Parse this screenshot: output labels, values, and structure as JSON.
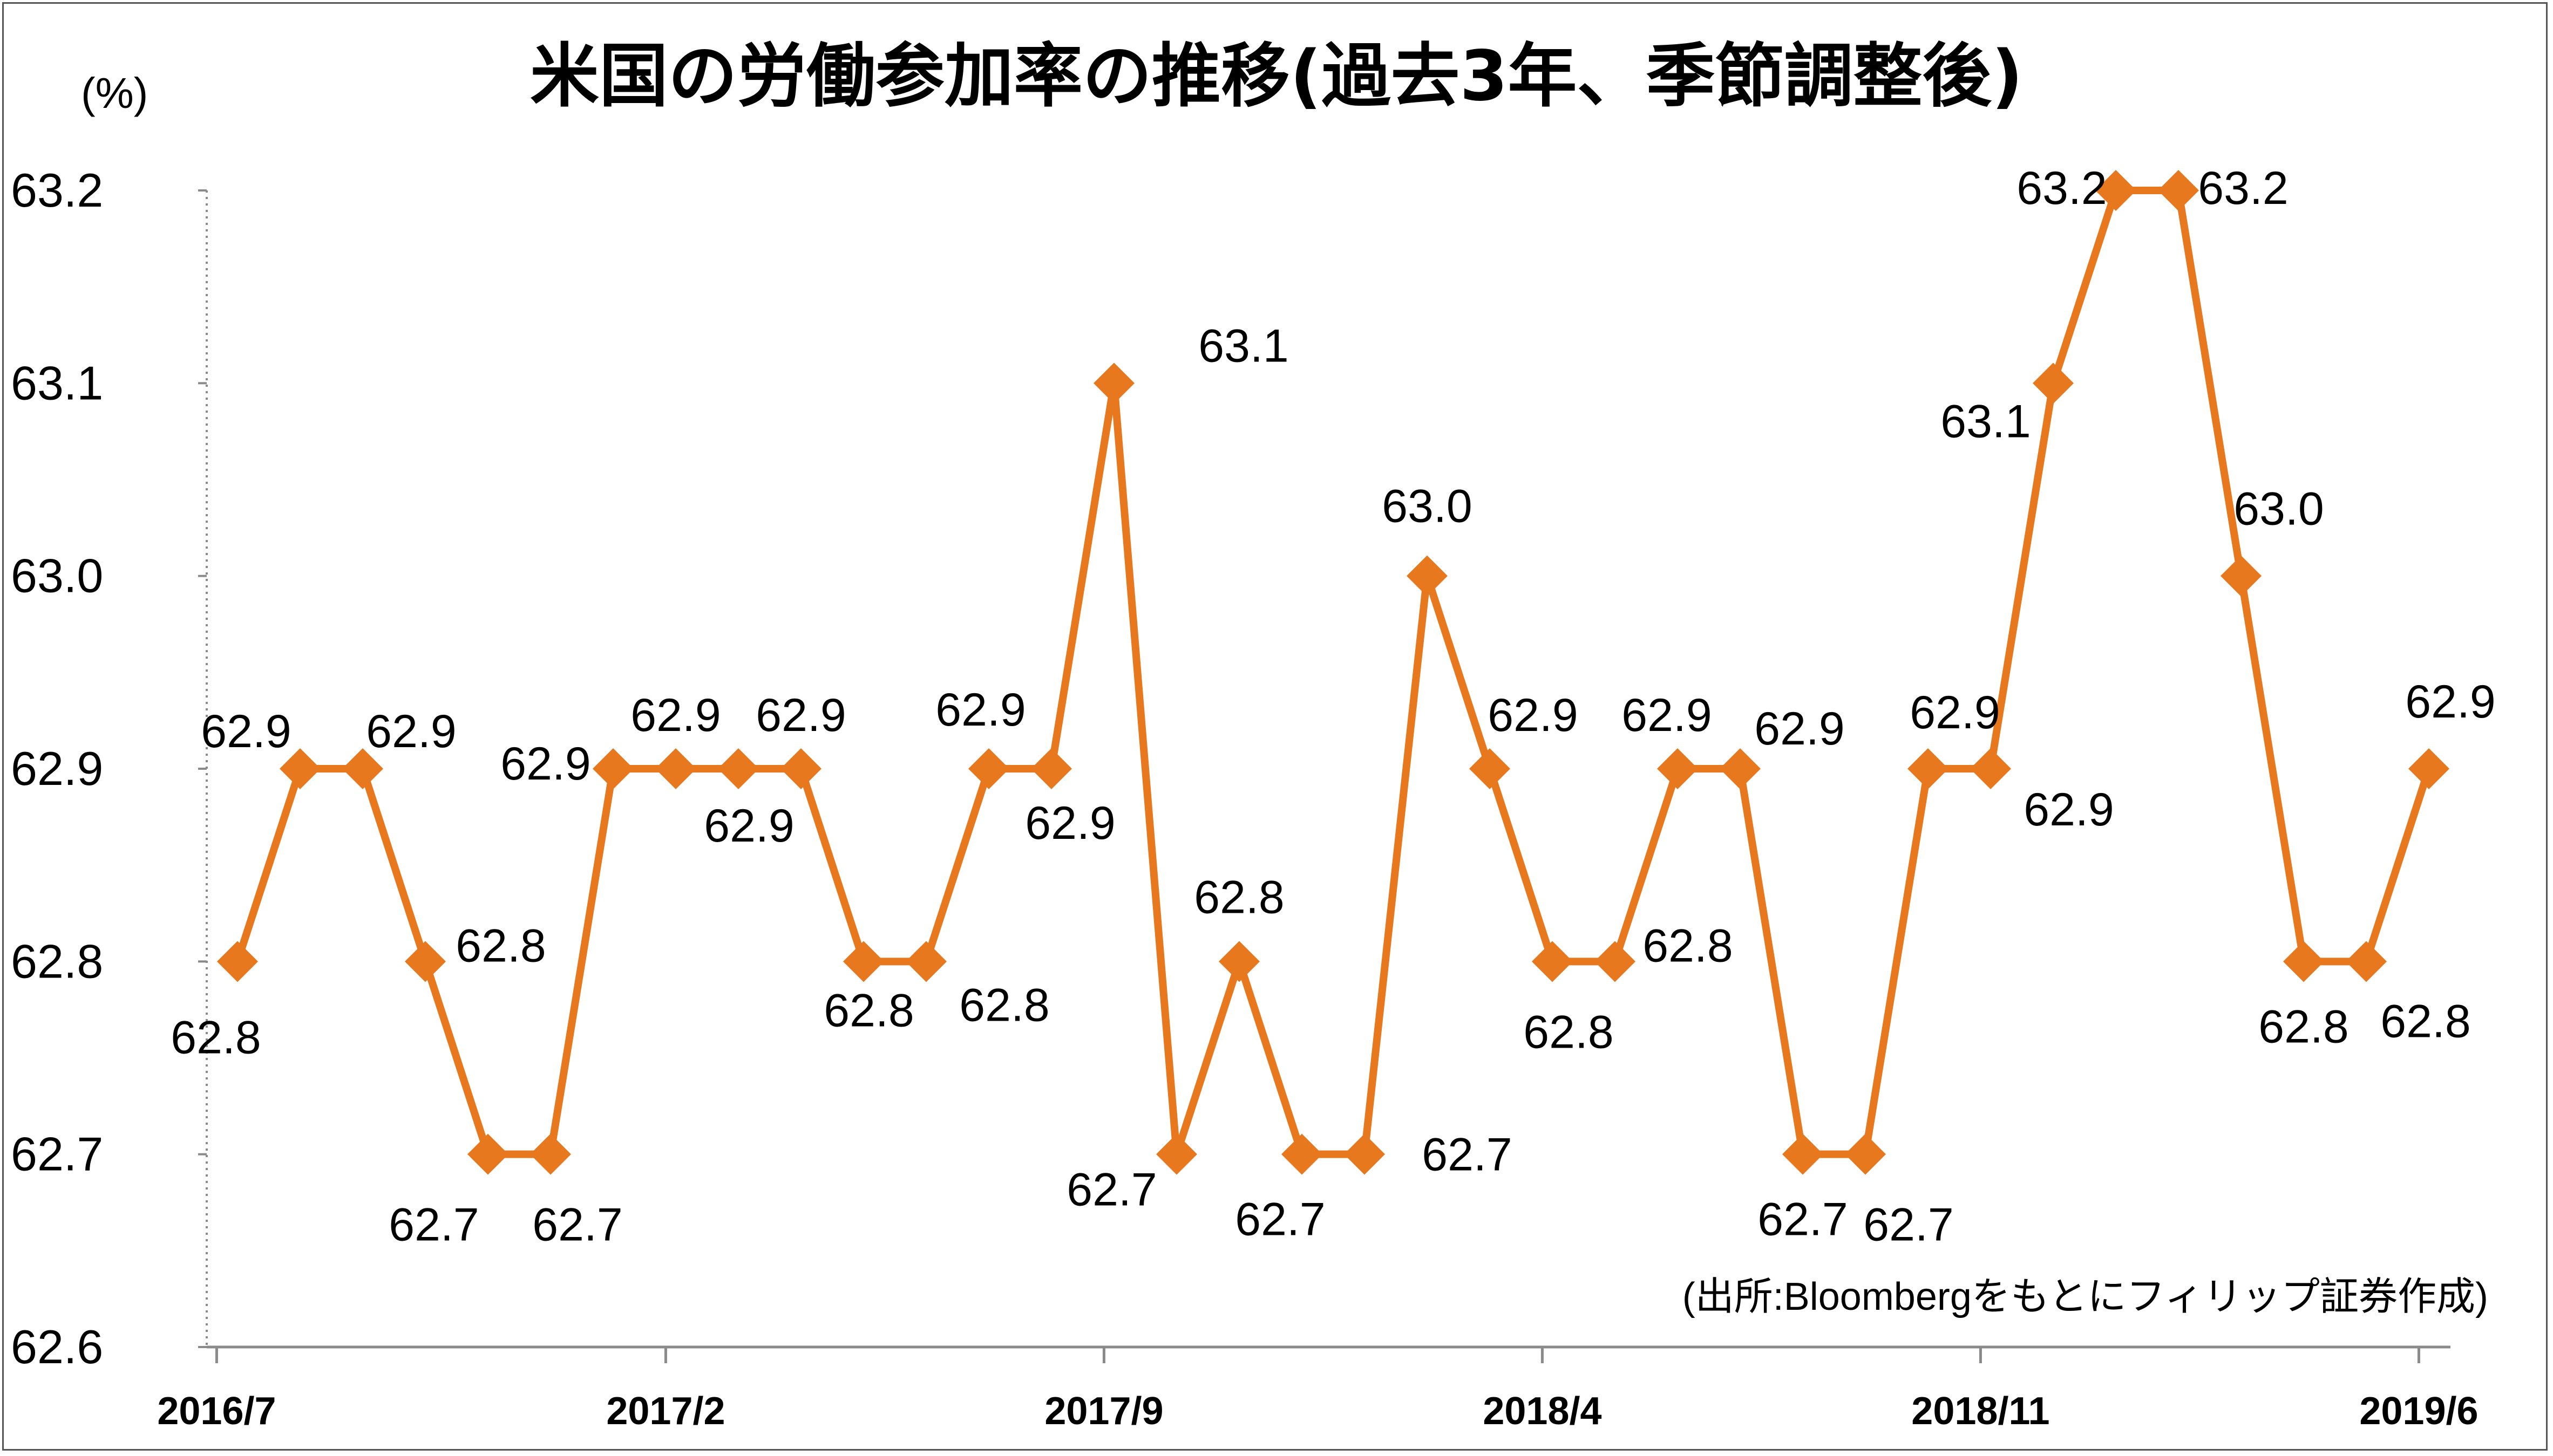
{
  "chart_data": {
    "type": "line",
    "title": "米国の労働参加率の推移(過去3年、季節調整後)",
    "ylabel": "(%)",
    "source": "(出所:Bloombergをもとにフィリップ証券作成)",
    "ylim": [
      62.6,
      63.2
    ],
    "yticks": [
      "63.2",
      "63.1",
      "63.0",
      "62.9",
      "62.8",
      "62.7",
      "62.6"
    ],
    "x_tick_labels": [
      {
        "index": 0,
        "label": "2016/7"
      },
      {
        "index": 7,
        "label": "2017/2"
      },
      {
        "index": 14,
        "label": "2017/9"
      },
      {
        "index": 21,
        "label": "2018/4"
      },
      {
        "index": 28,
        "label": "2018/11"
      },
      {
        "index": 35,
        "label": "2019/6"
      }
    ],
    "series": [
      {
        "values": [
          62.8,
          62.9,
          62.9,
          62.8,
          62.7,
          62.7,
          62.9,
          62.9,
          62.9,
          62.9,
          62.8,
          62.8,
          62.9,
          62.9,
          63.1,
          62.7,
          62.8,
          62.7,
          62.7,
          63.0,
          62.9,
          62.8,
          62.8,
          62.9,
          62.9,
          62.7,
          62.7,
          62.9,
          62.9,
          63.1,
          63.2,
          63.2,
          63.0,
          62.8,
          62.8,
          62.9
        ],
        "data_labels": [
          "62.8",
          "62.9",
          "62.9",
          "62.8",
          "62.7",
          "62.7",
          "62.9",
          "62.9",
          "62.9",
          "62.9",
          "62.8",
          "62.8",
          "62.9",
          "62.9",
          "63.1",
          "62.7",
          "62.8",
          "62.7",
          "62.7",
          "63.0",
          "62.9",
          "62.8",
          "62.8",
          "62.9",
          "62.9",
          "62.7",
          "62.7",
          "62.9",
          "62.9",
          "63.1",
          "63.2",
          "63.2",
          "63.0",
          "62.8",
          "62.8",
          "62.9"
        ],
        "color": "#E8781E"
      }
    ],
    "grid": false,
    "legend": "none"
  }
}
